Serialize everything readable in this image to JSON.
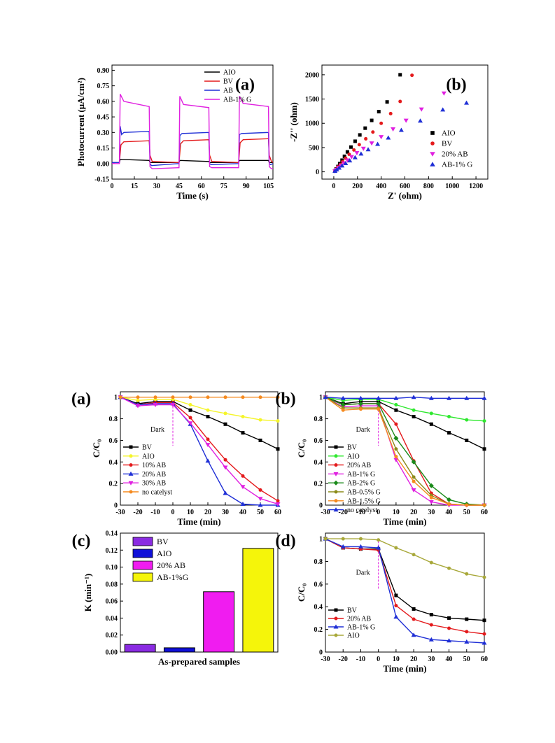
{
  "chart_data": [
    {
      "id": "fig1a",
      "type": "line",
      "panel_label": "(a)",
      "xlabel": "Time (s)",
      "ylabel": "Photocurrent (μA/cm²)",
      "xlim": [
        0,
        108
      ],
      "ylim": [
        -0.15,
        0.95
      ],
      "xticks": [
        0,
        15,
        30,
        45,
        60,
        75,
        90,
        105
      ],
      "yticks": [
        -0.15,
        0.0,
        0.15,
        0.3,
        0.45,
        0.6,
        0.75,
        0.9
      ],
      "ytick_labels": [
        "-0.15",
        "0.00",
        "0.15",
        "0.30",
        "0.45",
        "0.60",
        "0.75",
        "0.90"
      ],
      "legend_position": "top-right",
      "series": [
        {
          "name": "AIO",
          "color": "#000000",
          "x": [
            0,
            5,
            5.5,
            25,
            25.5,
            45,
            45.5,
            65,
            65.5,
            85,
            85.5,
            105,
            105.5,
            108
          ],
          "y": [
            0.01,
            0.01,
            0.04,
            0.03,
            0.01,
            0.01,
            0.03,
            0.02,
            0.01,
            0.01,
            0.03,
            0.03,
            0.01,
            0.01
          ]
        },
        {
          "name": "BV",
          "color": "#e41a1c",
          "x": [
            0,
            5,
            6,
            8,
            25,
            25.5,
            27,
            45,
            46,
            48,
            65,
            65.5,
            67,
            85,
            86,
            88,
            105,
            105.5,
            107,
            108
          ],
          "y": [
            0.01,
            0.01,
            0.18,
            0.21,
            0.22,
            0.08,
            0.02,
            0.01,
            0.19,
            0.22,
            0.23,
            0.08,
            0.02,
            0.01,
            0.2,
            0.23,
            0.24,
            0.08,
            0.02,
            0.01
          ]
        },
        {
          "name": "AB",
          "color": "#1f2fd6",
          "x": [
            0,
            5,
            5.5,
            6.5,
            8,
            25,
            25.5,
            26.5,
            45,
            45.5,
            47,
            65,
            65.5,
            66.5,
            85,
            85.5,
            87,
            105,
            105.5,
            106.5,
            108
          ],
          "y": [
            0.01,
            0.01,
            0.36,
            0.28,
            0.3,
            0.31,
            0.0,
            -0.02,
            0.0,
            0.27,
            0.29,
            0.3,
            0.0,
            -0.01,
            0.0,
            0.28,
            0.29,
            0.3,
            0.0,
            -0.01,
            0.0
          ]
        },
        {
          "name": "AB-1% G",
          "color": "#e020e0",
          "x": [
            0,
            5,
            5.5,
            8,
            25,
            25.5,
            27,
            45,
            45.5,
            48,
            65,
            65.5,
            67,
            85,
            85.5,
            88,
            105,
            105.5,
            107,
            108
          ],
          "y": [
            0.0,
            0.0,
            0.67,
            0.6,
            0.55,
            -0.03,
            -0.05,
            -0.04,
            0.65,
            0.57,
            0.54,
            -0.03,
            -0.04,
            -0.04,
            0.65,
            0.58,
            0.55,
            -0.03,
            -0.05,
            -0.05
          ]
        }
      ]
    },
    {
      "id": "fig1b",
      "type": "scatter",
      "panel_label": "(b)",
      "xlabel": "Z' (ohm)",
      "ylabel": "-Z'' (ohm)",
      "xlim": [
        -100,
        1300
      ],
      "ylim": [
        -150,
        2200
      ],
      "xticks": [
        0,
        200,
        400,
        600,
        800,
        1000,
        1200
      ],
      "yticks": [
        0,
        500,
        1000,
        1500,
        2000
      ],
      "legend_position": "right",
      "series": [
        {
          "name": "AIO",
          "color": "#000000",
          "marker": "square",
          "x": [
            10,
            20,
            35,
            50,
            70,
            90,
            115,
            145,
            180,
            220,
            265,
            320,
            380,
            450,
            560
          ],
          "y": [
            20,
            60,
            110,
            170,
            240,
            320,
            410,
            510,
            630,
            760,
            900,
            1060,
            1240,
            1440,
            2000
          ]
        },
        {
          "name": "BV",
          "color": "#e41a1c",
          "marker": "circle",
          "x": [
            10,
            20,
            35,
            55,
            75,
            100,
            130,
            170,
            215,
            270,
            330,
            400,
            480,
            560,
            660
          ],
          "y": [
            20,
            55,
            100,
            150,
            210,
            280,
            360,
            450,
            560,
            680,
            820,
            1000,
            1200,
            1450,
            1990
          ]
        },
        {
          "name": "20% AB",
          "color": "#e020e0",
          "marker": "triangle-down",
          "x": [
            10,
            25,
            40,
            60,
            85,
            115,
            150,
            195,
            250,
            320,
            400,
            500,
            610,
            740,
            930
          ],
          "y": [
            15,
            45,
            85,
            130,
            180,
            240,
            310,
            390,
            480,
            590,
            720,
            880,
            1060,
            1290,
            1620
          ]
        },
        {
          "name": "AB-1% G",
          "color": "#1f2fd6",
          "marker": "triangle",
          "x": [
            10,
            25,
            45,
            70,
            100,
            135,
            180,
            230,
            290,
            370,
            460,
            570,
            730,
            920,
            1120
          ],
          "y": [
            15,
            45,
            80,
            125,
            175,
            230,
            295,
            370,
            460,
            570,
            700,
            860,
            1050,
            1280,
            1420
          ]
        }
      ]
    },
    {
      "id": "fig2a",
      "type": "line",
      "panel_label": "(a)",
      "xlabel": "Time (min)",
      "ylabel": "C/C₀",
      "xlim": [
        -30,
        60
      ],
      "ylim": [
        0.0,
        1.05
      ],
      "xticks": [
        -30,
        -20,
        -10,
        0,
        10,
        20,
        30,
        40,
        50,
        60
      ],
      "yticks": [
        0.0,
        0.2,
        0.4,
        0.6,
        0.8,
        1.0
      ],
      "annotation": "Dark",
      "legend_position": "bottom-left",
      "x": [
        -30,
        -20,
        -10,
        0,
        10,
        20,
        30,
        40,
        50,
        60
      ],
      "series": [
        {
          "name": "BV",
          "color": "#000000",
          "marker": "square",
          "values": [
            1.0,
            0.94,
            0.96,
            0.96,
            0.88,
            0.82,
            0.75,
            0.67,
            0.6,
            0.52
          ]
        },
        {
          "name": "AIO",
          "color": "#f5f52a",
          "marker": "circle",
          "values": [
            1.0,
            0.97,
            0.98,
            0.98,
            0.93,
            0.88,
            0.85,
            0.82,
            0.79,
            0.78
          ]
        },
        {
          "name": "10% AB",
          "color": "#e41a1c",
          "marker": "circle",
          "values": [
            1.0,
            0.93,
            0.95,
            0.95,
            0.81,
            0.61,
            0.42,
            0.27,
            0.14,
            0.04
          ]
        },
        {
          "name": "20% AB",
          "color": "#1f2fd6",
          "marker": "triangle",
          "values": [
            1.0,
            0.93,
            0.94,
            0.94,
            0.75,
            0.41,
            0.11,
            0.01,
            0.0,
            0.0
          ]
        },
        {
          "name": "30% AB",
          "color": "#e020e0",
          "marker": "triangle-down",
          "values": [
            1.0,
            0.92,
            0.93,
            0.93,
            0.76,
            0.56,
            0.35,
            0.17,
            0.06,
            0.01
          ]
        },
        {
          "name": "no catelyst",
          "color": "#f58a1f",
          "marker": "circle",
          "values": [
            1.0,
            1.0,
            1.0,
            1.0,
            1.0,
            1.0,
            1.0,
            1.0,
            1.0,
            1.0
          ]
        }
      ]
    },
    {
      "id": "fig2b",
      "type": "line",
      "panel_label": "(b)",
      "xlabel": "Time (min)",
      "ylabel": "C/C₀",
      "xlim": [
        -30,
        60
      ],
      "ylim": [
        0.0,
        1.05
      ],
      "xticks": [
        -30,
        -20,
        -10,
        0,
        10,
        20,
        30,
        40,
        50,
        60
      ],
      "yticks": [
        0.0,
        0.2,
        0.4,
        0.6,
        0.8,
        1.0
      ],
      "annotation": "Dark",
      "legend_position": "bottom-left",
      "x": [
        -30,
        -20,
        -10,
        0,
        10,
        20,
        30,
        40,
        50,
        60
      ],
      "series": [
        {
          "name": "BV",
          "color": "#000000",
          "marker": "square",
          "values": [
            1.0,
            0.94,
            0.96,
            0.96,
            0.88,
            0.82,
            0.75,
            0.67,
            0.6,
            0.52
          ]
        },
        {
          "name": "AIO",
          "color": "#2ee82e",
          "marker": "circle",
          "values": [
            1.0,
            0.97,
            0.98,
            0.98,
            0.93,
            0.88,
            0.85,
            0.82,
            0.79,
            0.78
          ]
        },
        {
          "name": "20% AB",
          "color": "#e41a1c",
          "marker": "circle",
          "values": [
            1.0,
            0.93,
            0.94,
            0.94,
            0.75,
            0.41,
            0.11,
            0.01,
            0.0,
            0.0
          ]
        },
        {
          "name": "AB-1% G",
          "color": "#e020e0",
          "marker": "triangle-down",
          "values": [
            1.0,
            0.91,
            0.92,
            0.92,
            0.42,
            0.14,
            0.03,
            0.0,
            0.0,
            0.0
          ]
        },
        {
          "name": "AB-2% G",
          "color": "#1a8a1a",
          "marker": "diamond",
          "values": [
            1.0,
            0.93,
            0.94,
            0.94,
            0.62,
            0.4,
            0.18,
            0.05,
            0.01,
            0.0
          ]
        },
        {
          "name": "AB-0.5% G",
          "color": "#8b8b1a",
          "marker": "circle",
          "values": [
            1.0,
            0.9,
            0.9,
            0.9,
            0.52,
            0.26,
            0.09,
            0.01,
            0.0,
            0.0
          ]
        },
        {
          "name": "AB-1.5% G",
          "color": "#f58a1f",
          "marker": "circle",
          "values": [
            1.0,
            0.88,
            0.89,
            0.89,
            0.45,
            0.22,
            0.07,
            0.01,
            0.0,
            0.0
          ]
        },
        {
          "name": "no catelyst",
          "color": "#1f2fd6",
          "marker": "triangle",
          "values": [
            1.0,
            0.99,
            0.99,
            0.99,
            0.99,
            1.0,
            0.99,
            0.99,
            0.99,
            0.99
          ]
        }
      ]
    },
    {
      "id": "fig2c",
      "type": "bar",
      "panel_label": "(c)",
      "xlabel": "As-prepared samples",
      "ylabel": "K (min⁻¹)",
      "ylim": [
        0.0,
        0.14
      ],
      "yticks": [
        0.0,
        0.02,
        0.04,
        0.06,
        0.08,
        0.1,
        0.12,
        0.14
      ],
      "ytick_labels": [
        "0.00",
        "0.02",
        "0.04",
        "0.06",
        "0.08",
        "0.10",
        "0.12",
        "0.14"
      ],
      "legend_position": "top-left",
      "categories": [
        "BV",
        "AIO",
        "20% AB",
        "AB-1%G"
      ],
      "values": [
        0.009,
        0.005,
        0.071,
        0.122
      ],
      "colors": [
        "#8a2be2",
        "#1010d8",
        "#f01cf0",
        "#f5f50a"
      ]
    },
    {
      "id": "fig2d",
      "type": "line",
      "panel_label": "(d)",
      "xlabel": "Time (min)",
      "ylabel": "C/C₀",
      "xlim": [
        -30,
        60
      ],
      "ylim": [
        0.0,
        1.05
      ],
      "xticks": [
        -30,
        -20,
        -10,
        0,
        10,
        20,
        30,
        40,
        50,
        60
      ],
      "yticks": [
        0.0,
        0.2,
        0.4,
        0.6,
        0.8,
        1.0
      ],
      "annotation": "Dark",
      "legend_position": "bottom-left",
      "x": [
        -30,
        -20,
        -10,
        0,
        10,
        20,
        30,
        40,
        50,
        60
      ],
      "series": [
        {
          "name": "BV",
          "color": "#000000",
          "marker": "square",
          "values": [
            1.0,
            0.92,
            0.91,
            0.91,
            0.5,
            0.38,
            0.33,
            0.3,
            0.29,
            0.28
          ]
        },
        {
          "name": "20% AB",
          "color": "#e41a1c",
          "marker": "circle",
          "values": [
            1.0,
            0.92,
            0.91,
            0.9,
            0.41,
            0.29,
            0.24,
            0.21,
            0.18,
            0.16
          ]
        },
        {
          "name": "AB-1% G",
          "color": "#1f2fd6",
          "marker": "triangle",
          "values": [
            1.0,
            0.93,
            0.93,
            0.92,
            0.31,
            0.15,
            0.11,
            0.1,
            0.09,
            0.08
          ]
        },
        {
          "name": "AIO",
          "color": "#a8a83a",
          "marker": "circle",
          "values": [
            1.0,
            1.0,
            1.0,
            0.99,
            0.92,
            0.86,
            0.79,
            0.74,
            0.69,
            0.66
          ]
        }
      ]
    }
  ]
}
